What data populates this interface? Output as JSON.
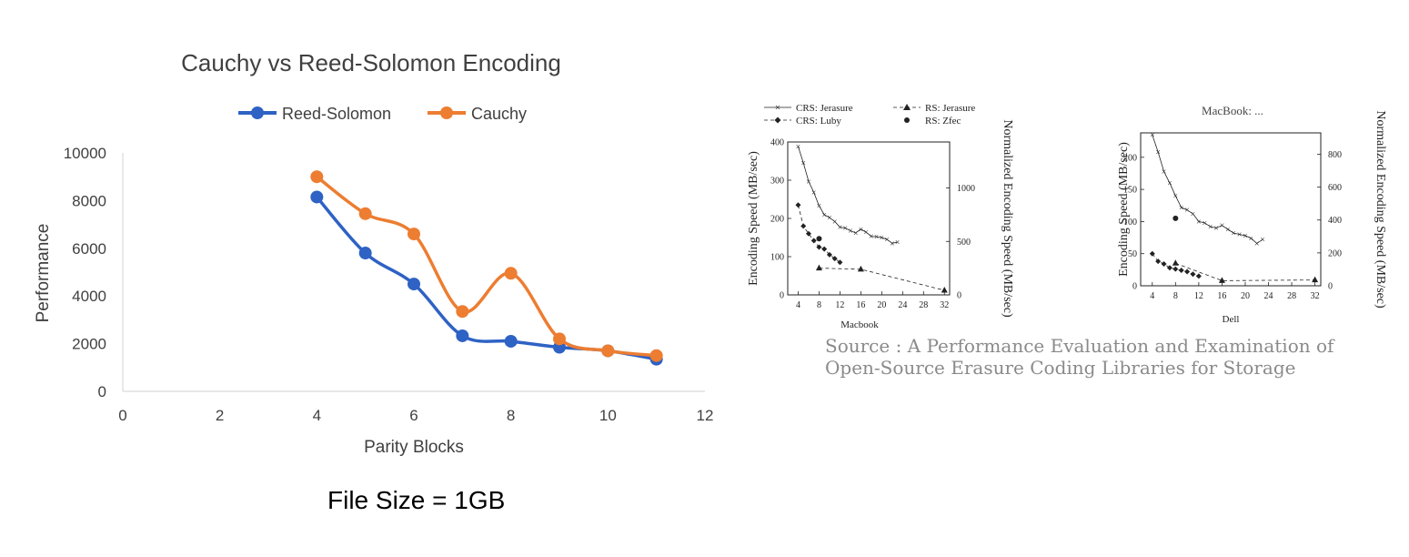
{
  "caption": "File Size = 1GB",
  "source": {
    "line1": "Source : A Performance Evaluation and Examination of",
    "line2": "Open-Source Erasure Coding Libraries for Storage"
  },
  "colors": {
    "reed_solomon": "#2e62c4",
    "cauchy": "#ed7d31",
    "axis": "#d9d9d9"
  },
  "chart_data": [
    {
      "type": "line",
      "title": "Cauchy vs Reed-Solomon Encoding",
      "xlabel": "Parity Blocks",
      "ylabel": "Performance",
      "xlim": [
        0,
        12
      ],
      "ylim": [
        0,
        10000
      ],
      "xticks": [
        0,
        2,
        4,
        6,
        8,
        10,
        12
      ],
      "yticks": [
        0,
        2000,
        4000,
        6000,
        8000,
        10000
      ],
      "legend": "top",
      "grid": false,
      "series": [
        {
          "name": "Reed-Solomon",
          "x": [
            4,
            5,
            6,
            7,
            8,
            9,
            10,
            11
          ],
          "y": [
            8150,
            5800,
            4500,
            2330,
            2100,
            1850,
            1700,
            1350
          ]
        },
        {
          "name": "Cauchy",
          "x": [
            4,
            5,
            6,
            7,
            8,
            9,
            10,
            11
          ],
          "y": [
            9000,
            7450,
            6600,
            3350,
            4950,
            2200,
            1700,
            1500
          ]
        }
      ]
    },
    {
      "type": "line",
      "title": "",
      "xlabel": "Macbook",
      "ylabel": "Encoding Speed (MB/sec)",
      "y2label": "Normalized Encoding Speed (MB/sec)",
      "xlim": [
        2,
        33
      ],
      "ylim": [
        0,
        400
      ],
      "y2lim": [
        0,
        1430
      ],
      "xticks": [
        4,
        8,
        12,
        16,
        20,
        24,
        28,
        32
      ],
      "yticks": [
        0,
        100,
        200,
        300,
        400
      ],
      "y2ticks": [
        0,
        500,
        1000
      ],
      "legend": "top",
      "series": [
        {
          "name": "CRS: Jerasure",
          "x": [
            4,
            5,
            6,
            7,
            8,
            9,
            10,
            11,
            12,
            13,
            14,
            15,
            16,
            17,
            18,
            19,
            20,
            21,
            22,
            23
          ],
          "y": [
            388,
            345,
            297,
            268,
            233,
            210,
            202,
            192,
            177,
            175,
            168,
            162,
            172,
            164,
            153,
            152,
            150,
            145,
            135,
            138
          ]
        },
        {
          "name": "CRS: Luby",
          "x": [
            4,
            5,
            6,
            7,
            8,
            9,
            10,
            11,
            12
          ],
          "y": [
            235,
            180,
            160,
            142,
            125,
            120,
            105,
            95,
            85
          ]
        },
        {
          "name": "RS: Jerasure",
          "x": [
            8,
            16,
            32
          ],
          "y": [
            70,
            67,
            12
          ]
        },
        {
          "name": "RS: Zfec",
          "x": [
            8
          ],
          "y": [
            147
          ]
        }
      ]
    },
    {
      "type": "line",
      "title": "MacBook: ...",
      "xlabel": "Dell",
      "ylabel": "Encoding Speed (MB/sec)",
      "y2label": "Normalized Encoding Speed (MB/sec)",
      "xlim": [
        2,
        33
      ],
      "ylim": [
        0,
        238
      ],
      "y2lim": [
        0,
        930
      ],
      "xticks": [
        4,
        8,
        12,
        16,
        20,
        24,
        28,
        32
      ],
      "yticks": [
        0,
        50,
        100,
        150,
        200
      ],
      "y2ticks": [
        0,
        200,
        400,
        600,
        800
      ],
      "series": [
        {
          "name": "CRS: Jerasure",
          "x": [
            4,
            5,
            6,
            7,
            8,
            9,
            10,
            11,
            12,
            13,
            14,
            15,
            16,
            17,
            18,
            19,
            20,
            21,
            22,
            23
          ],
          "y": [
            235,
            208,
            178,
            160,
            140,
            122,
            118,
            112,
            100,
            98,
            92,
            90,
            94,
            88,
            82,
            80,
            78,
            74,
            66,
            72
          ]
        },
        {
          "name": "CRS: Luby",
          "x": [
            4,
            5,
            6,
            7,
            8,
            9,
            10,
            11,
            12
          ],
          "y": [
            50,
            38,
            34,
            28,
            26,
            24,
            22,
            18,
            15
          ]
        },
        {
          "name": "RS: Jerasure",
          "x": [
            8,
            16,
            32
          ],
          "y": [
            35,
            8,
            9
          ]
        },
        {
          "name": "RS: Zfec",
          "x": [
            8
          ],
          "y": [
            105
          ]
        }
      ]
    }
  ]
}
